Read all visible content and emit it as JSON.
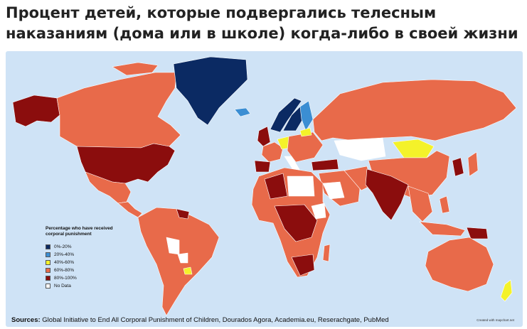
{
  "title": "Процент детей, которые подвергались телесным наказаниям (дома или в школе) когда-либо в своей жизни",
  "legend": {
    "title": "Percentage who have received corporal punishment",
    "items": [
      {
        "label": "0%-20%",
        "color": "#0b2a63"
      },
      {
        "label": "20%-40%",
        "color": "#3b8ed3"
      },
      {
        "label": "40%-60%",
        "color": "#f4f22a"
      },
      {
        "label": "60%-80%",
        "color": "#e86a4a"
      },
      {
        "label": "80%-100%",
        "color": "#8b0d0d"
      },
      {
        "label": "No Data",
        "color": "#ffffff"
      }
    ]
  },
  "sources": {
    "label": "Sources:",
    "text": "Global Initiative to End All Corporal Punishment of Children, Dourados Agora, Academia.eu, Reserachgate, PubMed"
  },
  "credit": "Created with mapchart.net",
  "colors": {
    "ocean": "#cfe3f6",
    "border": "#ffffff"
  }
}
